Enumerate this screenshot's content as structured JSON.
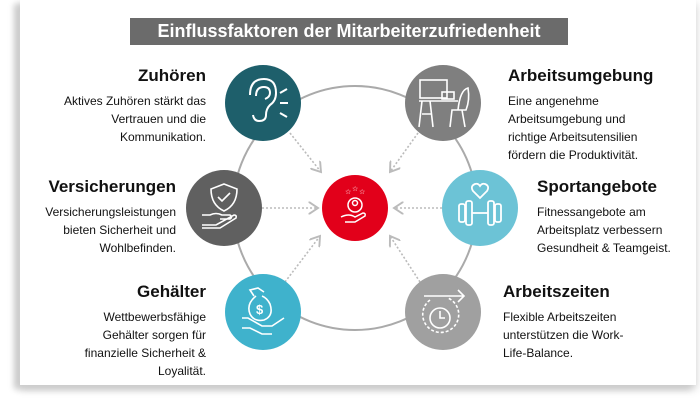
{
  "title": "Einflussfaktoren der Mitarbeiterzufriedenheit",
  "colors": {
    "center": "#e2001a",
    "zuhoeren": "#1e5f6b",
    "arbeitsumgebung": "#7f7f7f",
    "versicherungen": "#606060",
    "sport": "#6cc3d6",
    "gehaelter": "#3fb2cc",
    "arbeitszeiten": "#a0a0a0"
  },
  "center": {
    "icon": "hand-person-stars-icon"
  },
  "factors": [
    {
      "heading": "Zuhören",
      "text": "Aktives Zuhören stärkt das Vertrauen und die Kommunikation.",
      "icon": "ear-icon"
    },
    {
      "heading": "Arbeitsumgebung",
      "text": "Eine angenehme Arbeitsumgebung und richtige Arbeitsutensilien fördern die Produktivität.",
      "icon": "desk-icon"
    },
    {
      "heading": "Versicherungen",
      "text": "Versicherungsleistungen bieten Sicherheit und Wohlbefinden.",
      "icon": "shield-hand-icon"
    },
    {
      "heading": "Sportangebote",
      "text": "Fitnessangebote am Arbeitsplatz verbessern Gesundheit & Teamgeist.",
      "icon": "dumbbell-heart-icon"
    },
    {
      "heading": "Gehälter",
      "text": "Wettbewerbsfähige Gehälter sorgen für finanzielle Sicherheit & Loyalität.",
      "icon": "money-hand-icon"
    },
    {
      "heading": "Arbeitszeiten",
      "text": "Flexible Arbeitszeiten unterstützen die Work-Life-Balance.",
      "icon": "clock-arrow-icon"
    }
  ]
}
